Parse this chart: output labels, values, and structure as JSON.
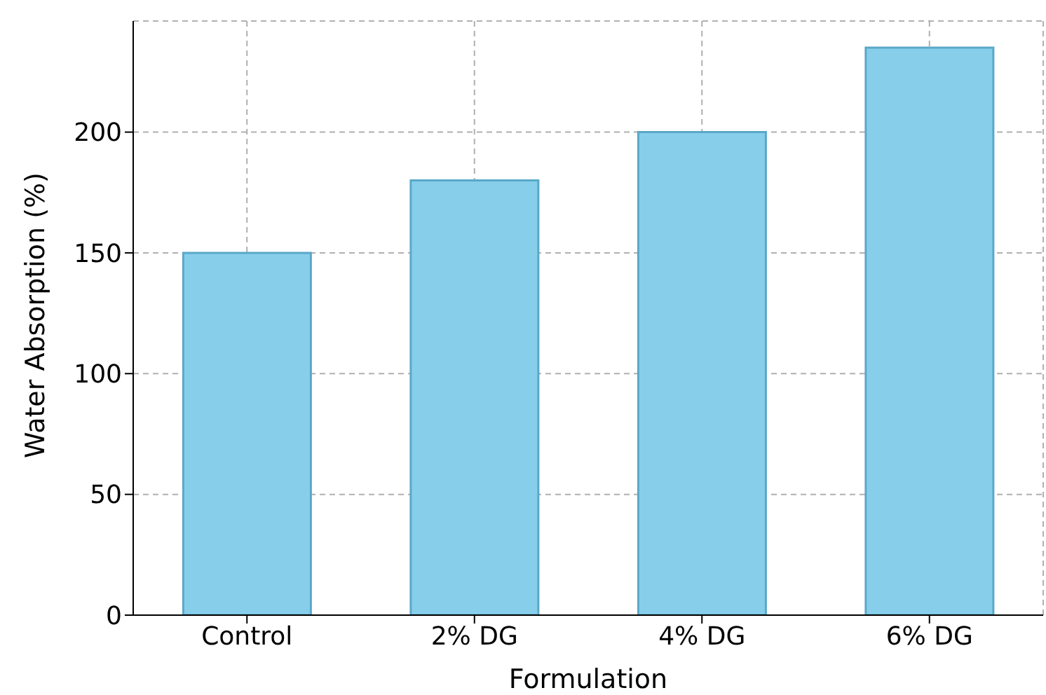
{
  "chart_data": {
    "type": "bar",
    "xlabel": "Formulation",
    "ylabel": "Water Absorption (%)",
    "categories": [
      "Control",
      "2% DG",
      "4% DG",
      "6% DG"
    ],
    "values": [
      150,
      180,
      200,
      235
    ],
    "color": "#87ceeb",
    "ylim": [
      0,
      246
    ],
    "yticks": [
      0,
      50,
      100,
      150,
      200
    ],
    "grid": true
  }
}
